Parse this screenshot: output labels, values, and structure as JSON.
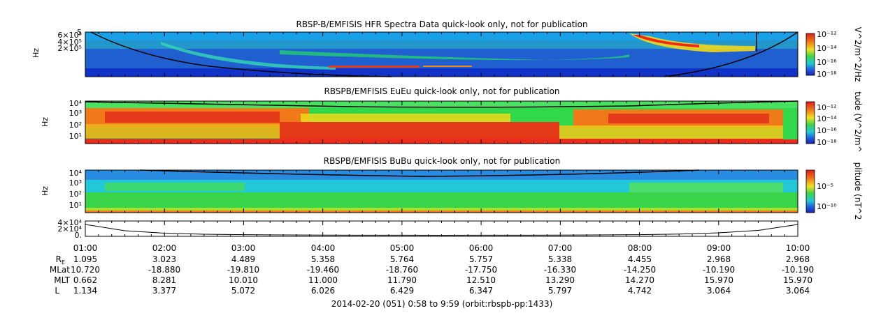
{
  "chart_data": [
    {
      "type": "heatmap",
      "title": "RBSP-B/EMFISIS  HFR Spectra Data quick-look only, not for publication",
      "ylabel": "Hz",
      "ytick_labels": [
        "5",
        "6×10⁵",
        "4×10⁵",
        "2×10⁵"
      ],
      "colorbar_label": "V^2/m^2/Hz",
      "colorbar_ticks": [
        "10⁻¹²",
        "10⁻¹⁴",
        "10⁻¹⁶",
        "10⁻¹⁸"
      ],
      "colorbar_range": [
        -18.5,
        -11.5
      ]
    },
    {
      "type": "heatmap",
      "title": "RBSPB/EMFISIS  EuEu quick-look only, not for publication",
      "ylabel": "Hz",
      "ytick_labels": [
        "10⁴",
        "10³",
        "10²",
        "10¹"
      ],
      "ylim_log10": [
        0.3,
        4.1
      ],
      "colorbar_label": "tude (V^2/m^",
      "colorbar_ticks": [
        "10⁻¹²",
        "10⁻¹⁴",
        "10⁻¹⁶",
        "10⁻¹⁸"
      ],
      "colorbar_range": [
        -18.5,
        -11.5
      ]
    },
    {
      "type": "heatmap",
      "title": "RBSPB/EMFISIS  BuBu quick-look only, not for publication",
      "ylabel": "Hz",
      "ytick_labels": [
        "10⁴",
        "10³",
        "10²",
        "10¹"
      ],
      "ylim_log10": [
        0.3,
        4.1
      ],
      "colorbar_label": "plitude (nT^2",
      "colorbar_ticks": [
        "10⁻⁵",
        "10⁻¹⁰"
      ],
      "colorbar_range": [
        -12.5,
        -2.5
      ]
    },
    {
      "type": "line",
      "title": "",
      "ytick_labels": [
        "4×10⁴",
        "2×10⁴",
        "0."
      ],
      "ylim": [
        0,
        40000
      ],
      "x": [
        1.0,
        1.5,
        2.0,
        2.5,
        3.0,
        3.5,
        4.0,
        4.5,
        5.0,
        5.5,
        6.0,
        6.5,
        7.0,
        7.5,
        8.0,
        8.5,
        9.0,
        9.5,
        10.0
      ],
      "values": [
        32000,
        14000,
        7000,
        4000,
        2700,
        2000,
        1500,
        1250,
        1100,
        1050,
        1100,
        1250,
        1500,
        2000,
        2900,
        4500,
        8000,
        15000,
        32000
      ]
    }
  ],
  "time_axis": {
    "tick_labels": [
      "01:00",
      "02:00",
      "03:00",
      "04:00",
      "05:00",
      "06:00",
      "07:00",
      "08:00",
      "09:00",
      "10:00"
    ],
    "range_hours": [
      0.967,
      9.983
    ]
  },
  "ephemeris": {
    "rows": [
      {
        "label": "R",
        "sub": "E",
        "values": [
          "1.095",
          "3.023",
          "4.489",
          "5.358",
          "5.764",
          "5.757",
          "5.338",
          "4.455",
          "2.968",
          "2.968"
        ]
      },
      {
        "label": "MLat",
        "sub": "",
        "values": [
          "10.720",
          "-18.880",
          "-19.810",
          "-19.460",
          "-18.760",
          "-17.750",
          "-16.330",
          "-14.250",
          "-10.190",
          "-10.190"
        ]
      },
      {
        "label": "MLT",
        "sub": "",
        "values": [
          "0.662",
          "8.281",
          "10.010",
          "11.000",
          "11.790",
          "12.510",
          "13.290",
          "14.270",
          "15.970",
          "15.970"
        ]
      },
      {
        "label": "L",
        "sub": "",
        "values": [
          "1.134",
          "3.377",
          "5.072",
          "6.026",
          "6.429",
          "6.347",
          "5.797",
          "4.742",
          "3.064",
          "3.064"
        ]
      }
    ]
  },
  "footer": {
    "text": "2014-02-20 (051) 0:58 to 9:59 (orbit:rbspb-pp:1433)"
  }
}
